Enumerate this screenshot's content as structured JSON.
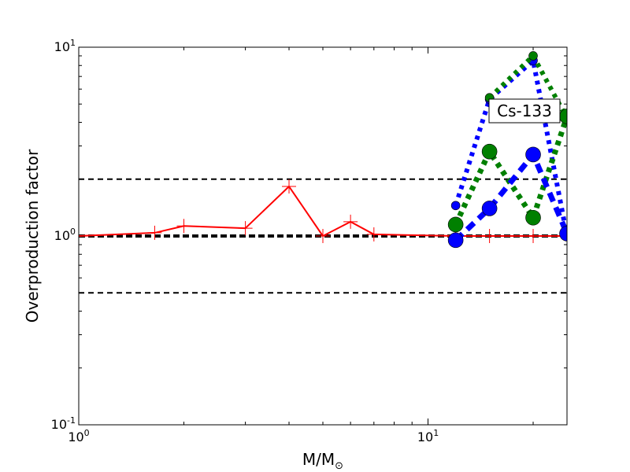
{
  "chart_data": {
    "type": "line",
    "xlabel": "M/M",
    "xlabel_subscript": "⊙",
    "ylabel": "Overproduction factor",
    "xscale": "log",
    "yscale": "log",
    "xlim": [
      1,
      25
    ],
    "ylim": [
      0.1,
      10
    ],
    "xticks": [
      {
        "base": "10",
        "exp": "0",
        "value": 1
      },
      {
        "base": "10",
        "exp": "1",
        "value": 10
      }
    ],
    "yticks": [
      {
        "base": "10",
        "exp": "-1",
        "value": 0.1
      },
      {
        "base": "10",
        "exp": "0",
        "value": 1
      },
      {
        "base": "10",
        "exp": "1",
        "value": 10
      }
    ],
    "annotation": "Cs-133",
    "reference_lines": [
      {
        "y": 2.0,
        "style": "dashed",
        "color": "#000000"
      },
      {
        "y": 1.0,
        "style": "dashed-thick",
        "color": "#000000"
      },
      {
        "y": 0.5,
        "style": "dashed",
        "color": "#000000"
      }
    ],
    "series": [
      {
        "color": "#ff0000",
        "line": "solid",
        "marker": "plus",
        "x": [
          1.0,
          1.65,
          2.0,
          3.0,
          4.0,
          5.0,
          6.0,
          7.0,
          12.0,
          15.0,
          20.0,
          25.0
        ],
        "y": [
          1.0,
          1.04,
          1.13,
          1.1,
          1.83,
          1.0,
          1.19,
          1.02,
          1.0,
          1.0,
          1.0,
          1.0
        ]
      },
      {
        "color": "#0000ff",
        "line": "dotted",
        "marker": "circle-small",
        "x": [
          12.0,
          15.0,
          20.0,
          25.0
        ],
        "y": [
          1.45,
          5.3,
          8.5,
          1.0
        ]
      },
      {
        "color": "#008000",
        "line": "dotted",
        "marker": "circle-small",
        "x": [
          15.0,
          20.0,
          25.0
        ],
        "y": [
          5.4,
          9.0,
          4.2
        ]
      },
      {
        "color": "#008000",
        "line": "dotted",
        "marker": "circle-large",
        "x": [
          12.0,
          15.0,
          20.0,
          25.0
        ],
        "y": [
          1.15,
          2.8,
          1.25,
          4.3
        ]
      },
      {
        "color": "#0000ff",
        "line": "dashed",
        "marker": "circle-large",
        "x": [
          12.0,
          15.0,
          20.0,
          25.0
        ],
        "y": [
          0.95,
          1.4,
          2.7,
          1.03
        ]
      }
    ]
  }
}
